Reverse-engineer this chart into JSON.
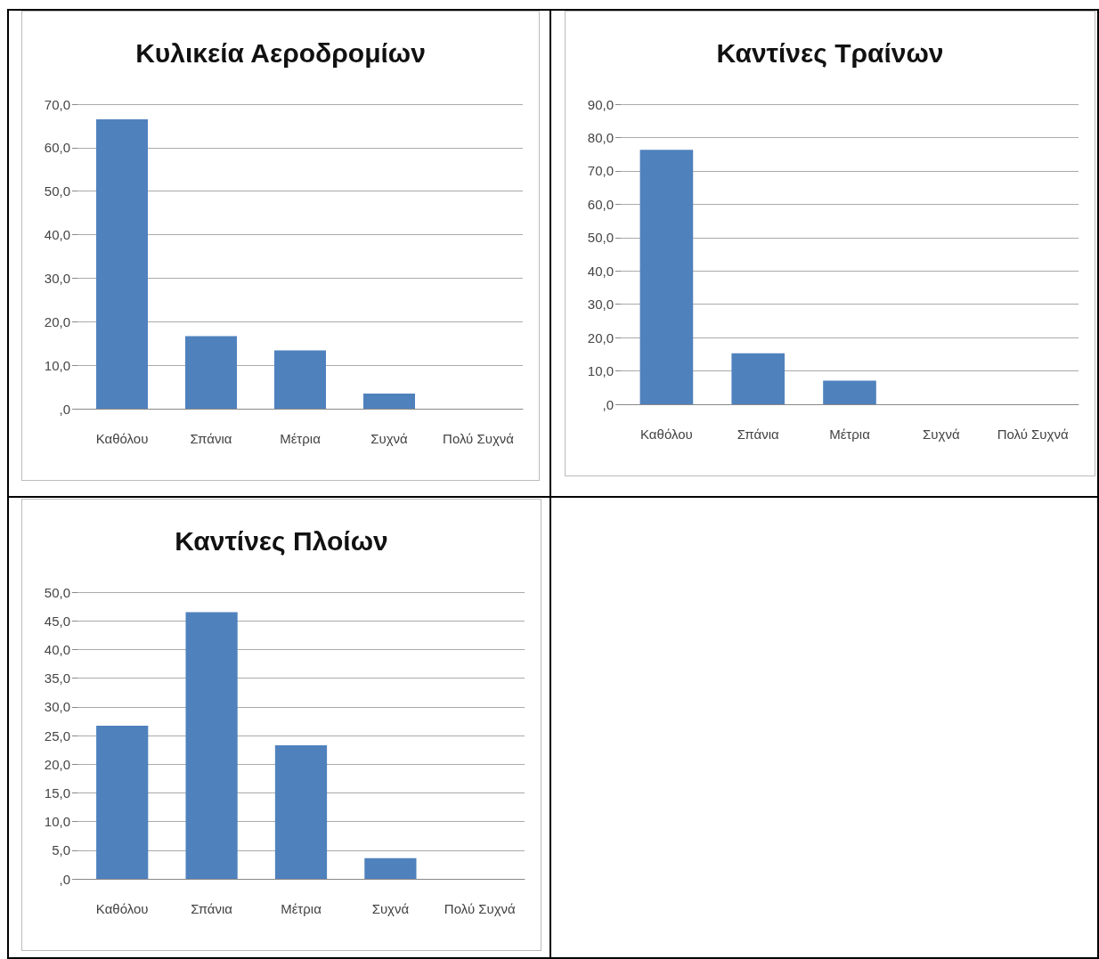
{
  "chart_data": [
    {
      "type": "bar",
      "title": "Κυλικεία Αεροδρομίων",
      "categories": [
        "Καθόλου",
        "Σπάνια",
        "Μέτρια",
        "Συχνά",
        "Πολύ Συχνά"
      ],
      "values": [
        66.5,
        16.7,
        13.4,
        3.5,
        0
      ],
      "color": "#4f81bd",
      "ylim": [
        0,
        70
      ],
      "yticks": [
        {
          "value": 0,
          "label": ",0"
        },
        {
          "value": 10,
          "label": "10,0"
        },
        {
          "value": 20,
          "label": "20,0"
        },
        {
          "value": 30,
          "label": "30,0"
        },
        {
          "value": 40,
          "label": "40,0"
        },
        {
          "value": 50,
          "label": "50,0"
        },
        {
          "value": 60,
          "label": "60,0"
        },
        {
          "value": 70,
          "label": "70,0"
        }
      ],
      "grid": "y"
    },
    {
      "type": "bar",
      "title": "Καντίνες Τραίνων",
      "categories": [
        "Καθόλου",
        "Σπάνια",
        "Μέτρια",
        "Συχνά",
        "Πολύ Συχνά"
      ],
      "values": [
        76.3,
        15.3,
        7.1,
        0,
        0
      ],
      "color": "#4f81bd",
      "ylim": [
        0,
        90
      ],
      "yticks": [
        {
          "value": 0,
          "label": ",0"
        },
        {
          "value": 10,
          "label": "10,0"
        },
        {
          "value": 20,
          "label": "20,0"
        },
        {
          "value": 30,
          "label": "30,0"
        },
        {
          "value": 40,
          "label": "40,0"
        },
        {
          "value": 50,
          "label": "50,0"
        },
        {
          "value": 60,
          "label": "60,0"
        },
        {
          "value": 70,
          "label": "70,0"
        },
        {
          "value": 80,
          "label": "80,0"
        },
        {
          "value": 90,
          "label": "90,0"
        }
      ],
      "grid": "y"
    },
    {
      "type": "bar",
      "title": "Καντίνες Πλοίων",
      "categories": [
        "Καθόλου",
        "Σπάνια",
        "Μέτρια",
        "Συχνά",
        "Πολύ Συχνά"
      ],
      "values": [
        26.7,
        46.5,
        23.3,
        3.6,
        0
      ],
      "color": "#4f81bd",
      "ylim": [
        0,
        50
      ],
      "yticks": [
        {
          "value": 0,
          "label": ",0"
        },
        {
          "value": 5,
          "label": "5,0"
        },
        {
          "value": 10,
          "label": "10,0"
        },
        {
          "value": 15,
          "label": "15,0"
        },
        {
          "value": 20,
          "label": "20,0"
        },
        {
          "value": 25,
          "label": "25,0"
        },
        {
          "value": 30,
          "label": "30,0"
        },
        {
          "value": 35,
          "label": "35,0"
        },
        {
          "value": 40,
          "label": "40,0"
        },
        {
          "value": 45,
          "label": "45,0"
        },
        {
          "value": 50,
          "label": "50,0"
        }
      ],
      "grid": "y"
    }
  ]
}
